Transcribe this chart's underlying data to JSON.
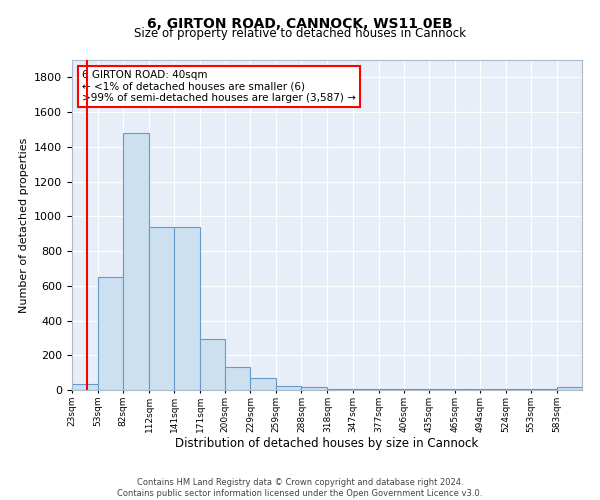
{
  "title1": "6, GIRTON ROAD, CANNOCK, WS11 0EB",
  "title2": "Size of property relative to detached houses in Cannock",
  "xlabel": "Distribution of detached houses by size in Cannock",
  "ylabel": "Number of detached properties",
  "footnote1": "Contains HM Land Registry data © Crown copyright and database right 2024.",
  "footnote2": "Contains public sector information licensed under the Open Government Licence v3.0.",
  "bar_edge_color": "#6699cc",
  "bar_face_color": "#cce0f0",
  "background_color": "#e8eef8",
  "grid_color": "white",
  "annotation_line1": "6 GIRTON ROAD: 40sqm",
  "annotation_line2": "← <1% of detached houses are smaller (6)",
  "annotation_line3": ">99% of semi-detached houses are larger (3,587) →",
  "annotation_box_edge_color": "red",
  "red_line_x": 40,
  "bin_edges": [
    23,
    53,
    82,
    112,
    141,
    171,
    200,
    229,
    259,
    288,
    318,
    347,
    377,
    406,
    435,
    465,
    494,
    524,
    553,
    583,
    612
  ],
  "bin_counts": [
    35,
    650,
    1480,
    940,
    940,
    295,
    130,
    70,
    25,
    20,
    5,
    5,
    5,
    5,
    5,
    5,
    5,
    5,
    5,
    18
  ],
  "ylim": [
    0,
    1900
  ],
  "yticks": [
    0,
    200,
    400,
    600,
    800,
    1000,
    1200,
    1400,
    1600,
    1800
  ],
  "title1_fontsize": 10,
  "title2_fontsize": 8.5,
  "ylabel_fontsize": 8,
  "xlabel_fontsize": 8.5,
  "xtick_fontsize": 6.5,
  "ytick_fontsize": 8
}
